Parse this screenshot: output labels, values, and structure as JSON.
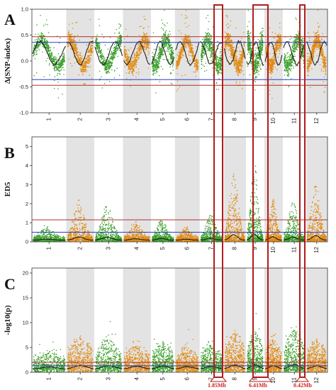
{
  "chart_data": {
    "type": "scatter",
    "chromosomes": [
      "1",
      "2",
      "3",
      "4",
      "5",
      "6",
      "7",
      "8",
      "9",
      "10",
      "11",
      "12"
    ],
    "chromosome_relative_lengths": [
      43,
      35,
      36,
      35,
      30,
      31,
      30,
      28,
      23,
      23,
      29,
      27
    ],
    "colors": {
      "green": "#3a9e2a",
      "orange": "#e08a12",
      "shade": "#e3e3e3",
      "fit": "#111111",
      "threshold_red": "#b23030",
      "threshold_blue": "#2a3fc8",
      "highlight_box": "#b31c1c"
    },
    "panels": [
      {
        "letter": "A",
        "ylabel": "Δ(SNP-index)",
        "ylim": [
          -1.0,
          1.0
        ],
        "yticks": [
          "1.0",
          "0.5",
          "0.0",
          "-0.5",
          "-1.0"
        ],
        "ytick_values": [
          1.0,
          0.5,
          0.0,
          -0.5,
          -1.0
        ],
        "thresholds": [
          {
            "color": "red",
            "values": [
              0.47,
              -0.47
            ]
          },
          {
            "color": "blue",
            "values": [
              0.36,
              -0.36
            ]
          }
        ]
      },
      {
        "letter": "B",
        "ylabel": "ED5",
        "ylim": [
          0,
          5.5
        ],
        "yticks": [
          "5",
          "4",
          "3",
          "2",
          "1",
          "0"
        ],
        "ytick_values": [
          5,
          4,
          3,
          2,
          1,
          0
        ],
        "thresholds": [
          {
            "color": "red",
            "values": [
              1.15
            ]
          },
          {
            "color": "blue",
            "values": [
              0.5
            ]
          }
        ]
      },
      {
        "letter": "C",
        "ylabel": "-log10(p)",
        "ylim": [
          0,
          21
        ],
        "yticks": [
          "20",
          "15",
          "10",
          "5",
          "0"
        ],
        "ytick_values": [
          20,
          15,
          10,
          5,
          0
        ],
        "thresholds": [
          {
            "color": "red",
            "values": [
              2.0
            ]
          },
          {
            "color": "blue",
            "values": [
              1.3
            ]
          }
        ]
      }
    ],
    "highlighted_regions": [
      {
        "chromosome": "7",
        "label": "1.85Mb"
      },
      {
        "chromosome": "9",
        "label": "6.41Mb"
      },
      {
        "chromosome": "11",
        "label": "0.42Mb"
      }
    ]
  }
}
